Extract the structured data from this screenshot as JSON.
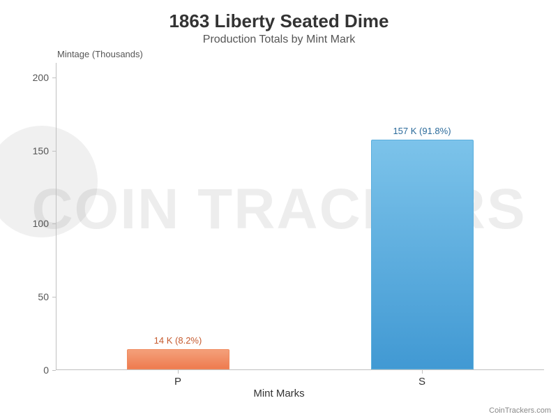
{
  "watermark_text": "COIN TRACKERS",
  "chart": {
    "type": "bar",
    "title": "1863 Liberty Seated Dime",
    "title_fontsize": 26,
    "title_color": "#333333",
    "subtitle": "Production Totals by Mint Mark",
    "subtitle_fontsize": 16,
    "subtitle_color": "#555555",
    "ylabel": "Mintage (Thousands)",
    "xlabel": "Mint Marks",
    "label_fontsize": 15,
    "axis_color": "#c0c0c0",
    "background_color": "#ffffff",
    "ylim": [
      0,
      210
    ],
    "yticks": [
      0,
      50,
      100,
      150,
      200
    ],
    "categories": [
      "P",
      "S"
    ],
    "values": [
      14,
      157
    ],
    "bar_labels": [
      "14 K (8.2%)",
      "157 K (91.8%)"
    ],
    "bar_colors_top": [
      "#f4a07a",
      "#7cc3ea"
    ],
    "bar_colors_bottom": [
      "#ee7b4f",
      "#4199d3"
    ],
    "bar_border_colors": [
      "#f08a5d",
      "#5aaedd"
    ],
    "bar_label_colors": [
      "#c55a2e",
      "#2a6a9a"
    ],
    "bar_width_ratio": 0.42,
    "tick_fontsize": 14
  },
  "attribution": "CoinTrackers.com"
}
